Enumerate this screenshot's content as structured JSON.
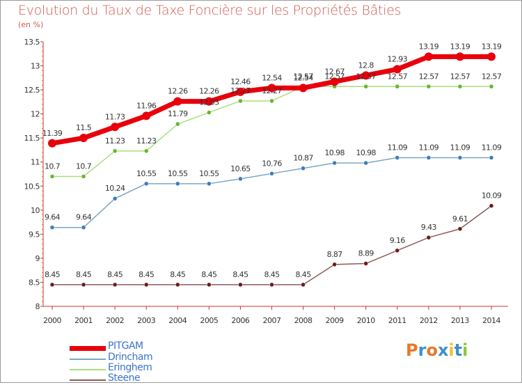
{
  "header": {
    "title": "Evolution du Taux de Taxe Foncière sur les Propriétés Bâties",
    "subtitle": "(en %)"
  },
  "logo": {
    "letters": [
      "P",
      "r",
      "o",
      "x",
      "i",
      "t",
      "i"
    ],
    "colors": [
      "#e8782a",
      "#3a8fd0",
      "#e8782a",
      "#3a8fd0",
      "#f2c12e",
      "#3a8fd0",
      "#8cc63f"
    ]
  },
  "chart_data": {
    "type": "line",
    "x": [
      "2000",
      "2001",
      "2002",
      "2003",
      "2004",
      "2005",
      "2006",
      "2007",
      "2008",
      "2009",
      "2010",
      "2011",
      "2012",
      "2013",
      "2014"
    ],
    "ylim": [
      8,
      13.5
    ],
    "yticks": [
      "8",
      "8.5",
      "9",
      "9.5",
      "10",
      "10.5",
      "11",
      "11.5",
      "12",
      "12.5",
      "13",
      "13.5"
    ],
    "grid": false,
    "legend_position": "bottom-left",
    "series": [
      {
        "name": "PITGAM",
        "color": "#e8000b",
        "marker": "#e8000b",
        "values": [
          11.39,
          11.5,
          11.73,
          11.96,
          12.26,
          12.26,
          12.46,
          12.54,
          12.54,
          12.67,
          12.8,
          12.93,
          13.19,
          13.19,
          13.19
        ],
        "labels": [
          "11.39",
          "11.5",
          "11.73",
          "11.96",
          "12.26",
          "12.26",
          "12.46",
          "12.54",
          "12.54",
          "12.67",
          "12.8",
          "12.93",
          "13.19",
          "13.19",
          "13.19"
        ]
      },
      {
        "name": "Drincham",
        "color": "#7aa7c7",
        "marker": "#3e7db8",
        "values": [
          9.64,
          9.64,
          10.24,
          10.55,
          10.55,
          10.55,
          10.65,
          10.76,
          10.87,
          10.98,
          10.98,
          11.09,
          11.09,
          11.09,
          11.09
        ],
        "labels": [
          "9.64",
          "9.64",
          "10.24",
          "10.55",
          "10.55",
          "10.55",
          "10.65",
          "10.76",
          "10.87",
          "10.98",
          "10.98",
          "11.09",
          "11.09",
          "11.09",
          "11.09"
        ]
      },
      {
        "name": "Eringhem",
        "color": "#a8de7c",
        "marker": "#62b82b",
        "values": [
          10.7,
          10.7,
          11.23,
          11.23,
          11.79,
          12.03,
          12.27,
          12.27,
          12.57,
          12.57,
          12.57,
          12.57,
          12.57,
          12.57,
          12.57
        ],
        "labels": [
          "10.7",
          "10.7",
          "11.23",
          "11.23",
          "11.79",
          "12.03",
          "12.27",
          "12.27",
          "12.57",
          "12.57",
          "12.57",
          "12.57",
          "12.57",
          "12.57",
          "12.57"
        ]
      },
      {
        "name": "Steene",
        "color": "#8e5a5a",
        "marker": "#6d1b1b",
        "values": [
          8.45,
          8.45,
          8.45,
          8.45,
          8.45,
          8.45,
          8.45,
          8.45,
          8.45,
          8.87,
          8.89,
          9.16,
          9.43,
          9.61,
          10.09
        ],
        "labels": [
          "8.45",
          "8.45",
          "8.45",
          "8.45",
          "8.45",
          "8.45",
          "8.45",
          "8.45",
          "8.45",
          "8.87",
          "8.89",
          "9.16",
          "9.43",
          "9.61",
          "10.09"
        ]
      }
    ]
  }
}
